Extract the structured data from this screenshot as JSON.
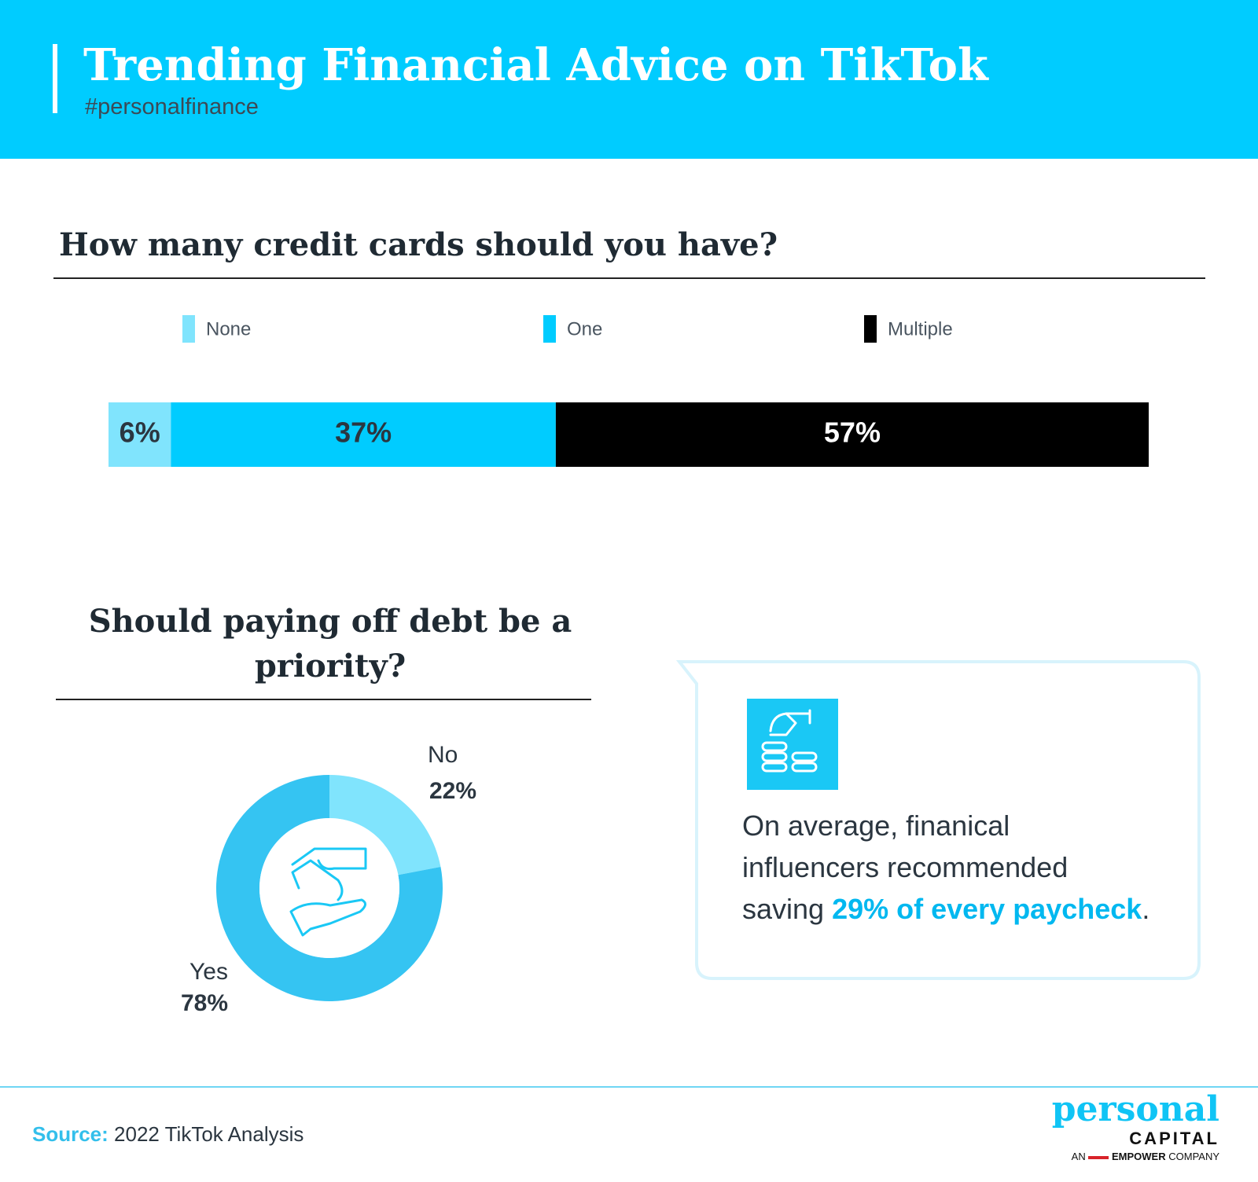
{
  "header": {
    "title": "Trending Financial Advice on TikTok",
    "subtitle": "#personalfinance"
  },
  "chart_data": [
    {
      "type": "bar",
      "title": "How many credit cards should you have?",
      "series": [
        {
          "name": "None",
          "color": "#80e4fd",
          "values": [
            6
          ],
          "value_labels": [
            "6%"
          ]
        },
        {
          "name": "One",
          "color": "#00ccff",
          "values": [
            37
          ],
          "value_labels": [
            "37%"
          ]
        },
        {
          "name": "Multiple",
          "color": "#000000",
          "values": [
            57
          ],
          "value_labels": [
            "57%"
          ]
        }
      ]
    },
    {
      "type": "pie",
      "title": "Should paying off debt be a priority?",
      "categories": [
        "No",
        "Yes"
      ],
      "values": [
        22,
        78
      ],
      "value_labels": [
        "22%",
        "78%"
      ],
      "colors": [
        "#80e4fd",
        "#35c4f2"
      ]
    }
  ],
  "callout": {
    "lines": [
      "On average, finanical",
      "influencers recommended"
    ],
    "last_line": [
      "saving",
      "29% of every paycheck",
      "."
    ]
  },
  "footer": {
    "source_label": "Source:",
    "source": "2022 TikTok Analysis"
  },
  "logo": {
    "name": "personal",
    "sub": "CAPITAL",
    "tagline": [
      "AN",
      "EMPOWER",
      "COMPANY"
    ]
  }
}
